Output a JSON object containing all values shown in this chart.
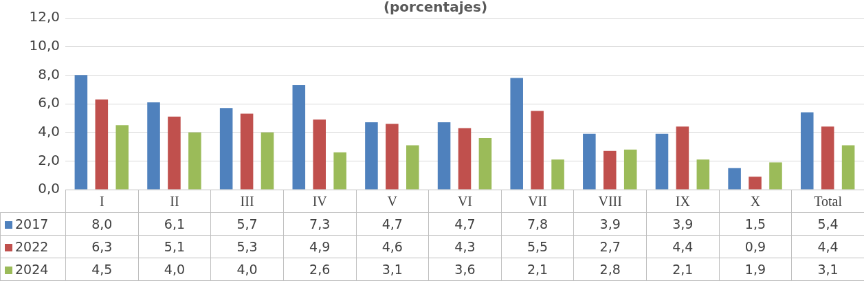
{
  "chart_data": {
    "type": "bar",
    "title": "(porcentajes)",
    "categories": [
      "I",
      "II",
      "III",
      "IV",
      "V",
      "VI",
      "VII",
      "VIII",
      "IX",
      "X",
      "Total"
    ],
    "series": [
      {
        "name": "2017",
        "color": "#4f81bd",
        "values": [
          8.0,
          6.1,
          5.7,
          7.3,
          4.7,
          4.7,
          7.8,
          3.9,
          3.9,
          1.5,
          5.4
        ],
        "value_labels": [
          "8,0",
          "6,1",
          "5,7",
          "7,3",
          "4,7",
          "4,7",
          "7,8",
          "3,9",
          "3,9",
          "1,5",
          "5,4"
        ]
      },
      {
        "name": "2022",
        "color": "#c0504d",
        "values": [
          6.3,
          5.1,
          5.3,
          4.9,
          4.6,
          4.3,
          5.5,
          2.7,
          4.4,
          0.9,
          4.4
        ],
        "value_labels": [
          "6,3",
          "5,1",
          "5,3",
          "4,9",
          "4,6",
          "4,3",
          "5,5",
          "2,7",
          "4,4",
          "0,9",
          "4,4"
        ]
      },
      {
        "name": "2024",
        "color": "#9bbb59",
        "values": [
          4.5,
          4.0,
          4.0,
          2.6,
          3.1,
          3.6,
          2.1,
          2.8,
          2.1,
          1.9,
          3.1
        ],
        "value_labels": [
          "4,5",
          "4,0",
          "4,0",
          "2,6",
          "3,1",
          "3,6",
          "2,1",
          "2,8",
          "2,1",
          "1,9",
          "3,1"
        ]
      }
    ],
    "ylim": [
      0,
      12
    ],
    "yticks": [
      {
        "value": 0,
        "label": "0,0"
      },
      {
        "value": 2,
        "label": "2,0"
      },
      {
        "value": 4,
        "label": "4,0"
      },
      {
        "value": 6,
        "label": "6,0"
      },
      {
        "value": 8,
        "label": "8,0"
      },
      {
        "value": 10,
        "label": "10,0"
      },
      {
        "value": 12,
        "label": "12,0"
      }
    ],
    "grid": "y",
    "legend": "bottom"
  }
}
